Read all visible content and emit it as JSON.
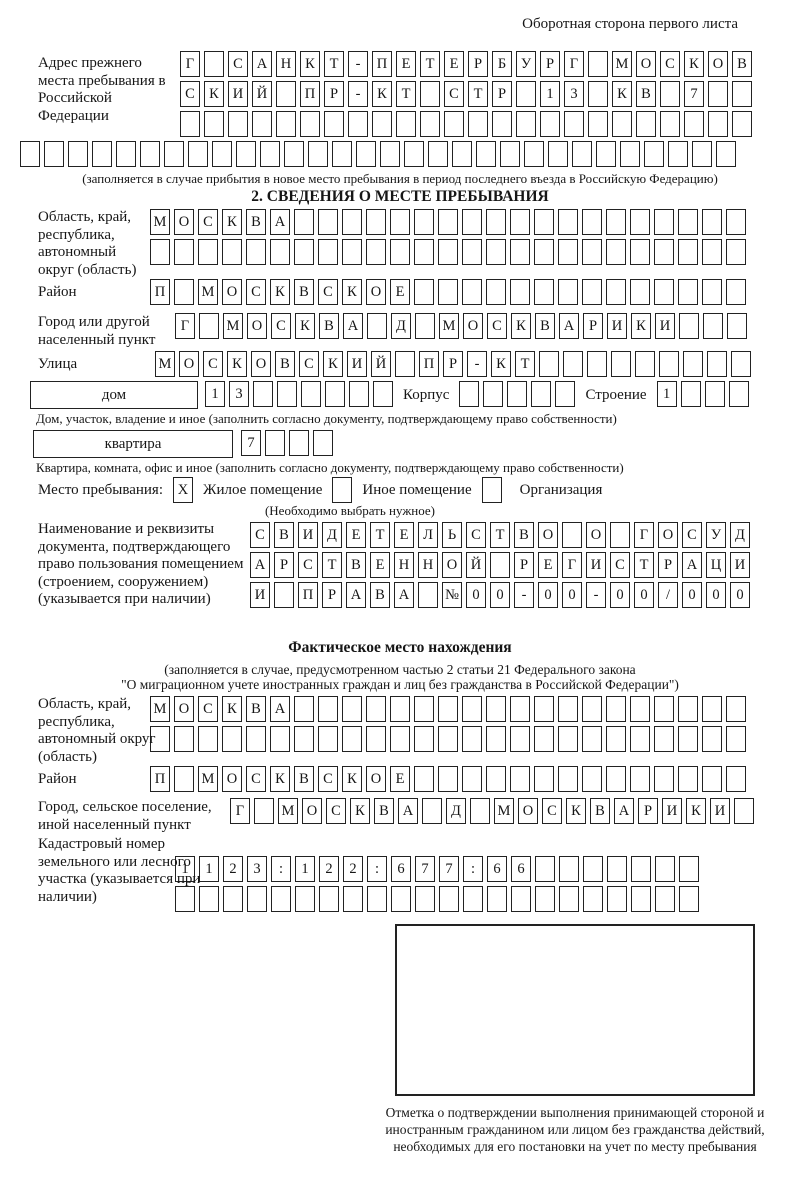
{
  "page": {
    "header_note": "Оборотная сторона первого листа"
  },
  "prev_address": {
    "label": "Адрес прежнего места пребывания в Российской Федерации",
    "rows": [
      {
        "chars": "Г САНКТ-ПЕТЕРБУРГ МОСКОВ",
        "len": 24
      },
      {
        "chars": "СКИЙ ПР-КТ СТР 13 КВ 7",
        "len": 24
      },
      {
        "chars": "",
        "len": 24
      },
      {
        "chars": "",
        "len": 30
      }
    ],
    "note": "(заполняется в случае прибытия в новое место пребывания в период последнего въезда в Российскую Федерацию)"
  },
  "section2": {
    "title": "2. СВЕДЕНИЯ О МЕСТЕ ПРЕБЫВАНИЯ",
    "region": {
      "label": "Область, край, республика, автономный округ (область)",
      "rows": [
        {
          "chars": "МОСКВА",
          "len": 25
        },
        {
          "chars": "",
          "len": 25
        }
      ]
    },
    "district": {
      "label": "Район",
      "rows": [
        {
          "chars": "П МОСКВСКОЕ",
          "len": 25
        }
      ]
    },
    "city": {
      "label": "Город или другой населенный пункт",
      "rows": [
        {
          "chars": "Г МОСКВА Д МОСКВАРИКИ",
          "len": 24
        }
      ]
    },
    "street": {
      "label": "Улица",
      "rows": [
        {
          "chars": "МОСКОВСКИЙ ПР-КТ",
          "len": 25
        }
      ]
    },
    "house": {
      "box_label": "дом",
      "cells": {
        "chars": "13",
        "len": 8
      },
      "korpus_label": "Корпус",
      "korpus_cells": {
        "chars": "",
        "len": 5
      },
      "stroenie_label": "Строение",
      "stroenie_cells": {
        "chars": "1",
        "len": 4
      }
    },
    "house_note": "Дом, участок, владение и иное (заполнить согласно документу, подтверждающему право собственности)",
    "apartment": {
      "box_label": "квартира",
      "cells": {
        "chars": "7",
        "len": 4
      }
    },
    "apartment_note": "Квартира, комната, офис и иное (заполнить согласно документу, подтверждающему право собственности)",
    "stay_type": {
      "label": "Место пребывания:",
      "options": [
        {
          "label": "Жилое помещение",
          "checked": "X"
        },
        {
          "label": "Иное помещение",
          "checked": ""
        },
        {
          "label": "Организация",
          "checked": ""
        }
      ],
      "note": "(Необходимо выбрать нужное)"
    },
    "doc": {
      "label": "Наименование и реквизиты документа, подтверждающего право пользования помещением (строением, сооружением) (указывается при наличии)",
      "rows": [
        {
          "chars": "СВИДЕТЕЛЬСТВО О ГОСУД",
          "len": 21
        },
        {
          "chars": "АРСТВЕННОЙ РЕГИСТРАЦИ",
          "len": 21
        },
        {
          "chars": "И ПРАВА №00-00-00/000",
          "len": 21
        }
      ]
    }
  },
  "actual_location": {
    "title": "Фактическое место нахождения",
    "note_line1": "(заполняется в случае, предусмотренном частью 2 статьи 21 Федерального закона",
    "note_line2": "\"О миграционном учете иностранных граждан и лиц без гражданства в Российской Федерации\")",
    "region": {
      "label": "Область, край, республика, автономный округ (область)",
      "rows": [
        {
          "chars": "МОСКВА",
          "len": 25
        },
        {
          "chars": "",
          "len": 25
        }
      ]
    },
    "district": {
      "label": "Район",
      "rows": [
        {
          "chars": "П МОСКВСКОЕ",
          "len": 25
        }
      ]
    },
    "city": {
      "label": "Город, сельское поселение, иной населенный пункт",
      "rows": [
        {
          "chars": "Г МОСКВА Д МОСКВАРИКИ",
          "len": 22
        }
      ]
    },
    "cadastre": {
      "label": "Кадастровый номер земельного или лесного участка (указывается при наличии)",
      "rows": [
        {
          "chars": "1123:122:677:66",
          "len": 22
        },
        {
          "chars": "",
          "len": 22
        }
      ]
    }
  },
  "stamp": {
    "caption": "Отметка о подтверждении выполнения принимающей стороной и иностранным гражданином или лицом без гражданства действий, необходимых для его постановки на учет по месту пребывания"
  }
}
